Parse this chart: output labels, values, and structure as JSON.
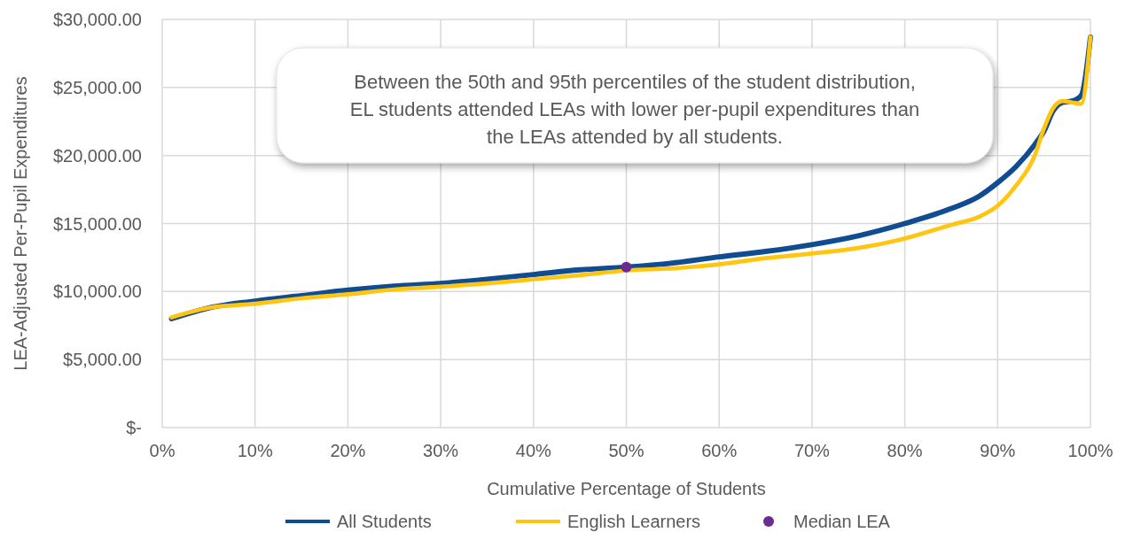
{
  "chart_data": {
    "type": "line",
    "xlabel": "Cumulative Percentage of Students",
    "ylabel": "LEA-Adjusted Per-Pupil Expenditures",
    "annotations": [
      "Between the 50th and 95th percentiles of the student distribution, EL students attended LEAs with lower per-pupil expenditures than the LEAs attended by all students."
    ],
    "xlim": [
      0,
      100
    ],
    "xticks": [
      {
        "value": 0,
        "label": "0%"
      },
      {
        "value": 10,
        "label": "10%"
      },
      {
        "value": 20,
        "label": "20%"
      },
      {
        "value": 30,
        "label": "30%"
      },
      {
        "value": 40,
        "label": "40%"
      },
      {
        "value": 50,
        "label": "50%"
      },
      {
        "value": 60,
        "label": "60%"
      },
      {
        "value": 70,
        "label": "70%"
      },
      {
        "value": 80,
        "label": "80%"
      },
      {
        "value": 90,
        "label": "90%"
      },
      {
        "value": 100,
        "label": "100%"
      }
    ],
    "ylim": [
      0,
      30000
    ],
    "yticks": [
      {
        "value": 0,
        "label": "$-"
      },
      {
        "value": 5000,
        "label": "$5,000.00"
      },
      {
        "value": 10000,
        "label": "$10,000.00"
      },
      {
        "value": 15000,
        "label": "$15,000.00"
      },
      {
        "value": 20000,
        "label": "$20,000.00"
      },
      {
        "value": 25000,
        "label": "$25,000.00"
      },
      {
        "value": 30000,
        "label": "$30,000.00"
      }
    ],
    "grid": true,
    "legend": "bottom",
    "line_style": "solid",
    "marker": "none",
    "x": [
      1,
      5,
      10,
      15,
      20,
      25,
      30,
      35,
      40,
      45,
      50,
      55,
      60,
      65,
      70,
      75,
      80,
      85,
      88,
      90,
      92,
      94,
      95,
      96,
      97,
      98,
      99,
      100
    ],
    "series": [
      {
        "name": "All Students",
        "color": "#0f4c92",
        "values": [
          8000,
          8800,
          9300,
          9700,
          10100,
          10400,
          10600,
          10900,
          11250,
          11600,
          11800,
          12100,
          12550,
          12950,
          13450,
          14100,
          15000,
          16100,
          17000,
          18000,
          19200,
          20800,
          21800,
          23300,
          23900,
          24000,
          24400,
          28700
        ]
      },
      {
        "name": "English Learners",
        "color": "#ffc511",
        "values": [
          8100,
          8800,
          9100,
          9500,
          9800,
          10150,
          10350,
          10600,
          10900,
          11200,
          11550,
          11700,
          12000,
          12450,
          12800,
          13200,
          13900,
          14900,
          15500,
          16300,
          17800,
          20000,
          22000,
          23500,
          24000,
          23900,
          23800,
          28700
        ]
      },
      {
        "name": "Median LEA",
        "type": "scatter",
        "marker": "circle",
        "color": "#6b2c91",
        "x": [
          50
        ],
        "values": [
          11800
        ]
      }
    ]
  }
}
